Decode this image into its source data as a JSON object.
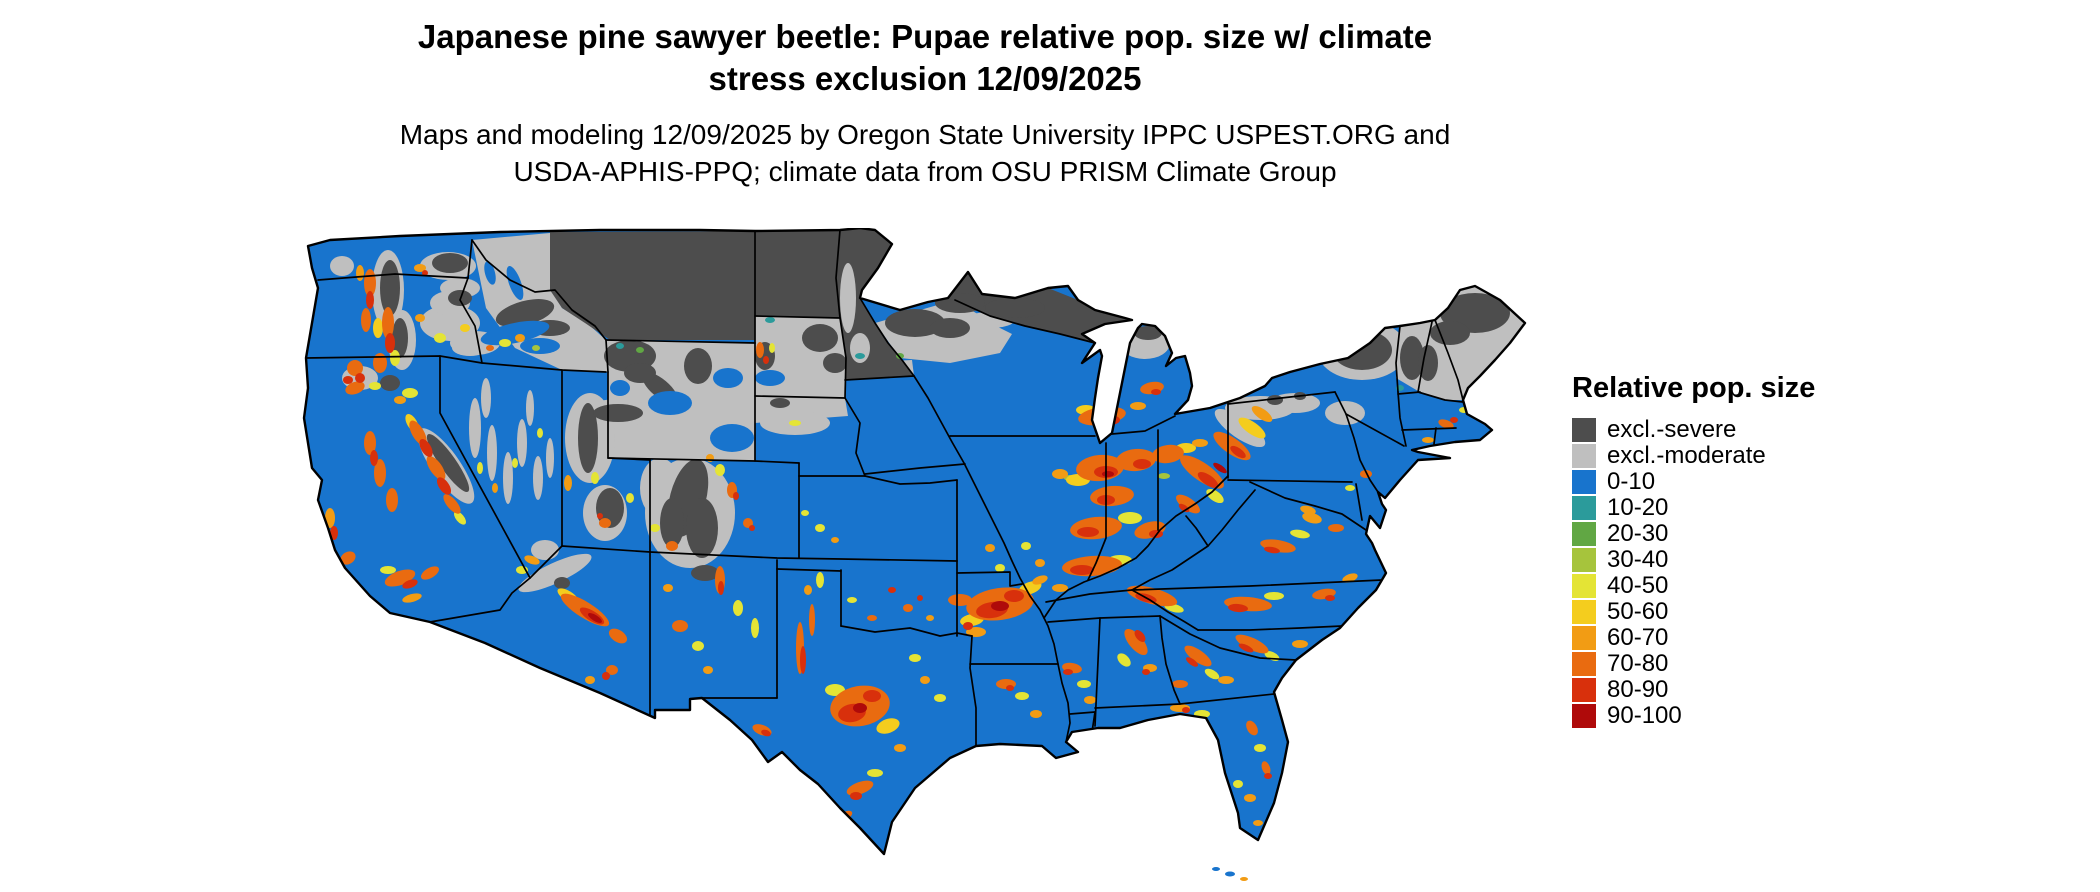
{
  "header": {
    "title_line1": "Japanese pine sawyer beetle: Pupae relative pop. size w/ climate",
    "title_line2": "stress exclusion 12/09/2025",
    "subtitle_line1": "Maps and modeling 12/09/2025 by Oregon State University IPPC USPEST.ORG and",
    "subtitle_line2": "USDA-APHIS-PPQ; climate data from OSU PRISM Climate Group"
  },
  "legend": {
    "title": "Relative pop. size",
    "entries": [
      {
        "key": "sev",
        "label": "excl.-severe",
        "color": "#4D4D4D"
      },
      {
        "key": "mod",
        "label": "excl.-moderate",
        "color": "#BFBFBF"
      },
      {
        "key": "b0",
        "label": "0-10",
        "color": "#1874CD"
      },
      {
        "key": "b10",
        "label": "10-20",
        "color": "#2B9B9B"
      },
      {
        "key": "b20",
        "label": "20-30",
        "color": "#61A744"
      },
      {
        "key": "b30",
        "label": "30-40",
        "color": "#A6C43C"
      },
      {
        "key": "b40",
        "label": "40-50",
        "color": "#E4E435"
      },
      {
        "key": "b50",
        "label": "50-60",
        "color": "#F4CD1E"
      },
      {
        "key": "b60",
        "label": "60-70",
        "color": "#F29C14"
      },
      {
        "key": "b70",
        "label": "70-80",
        "color": "#E96B10"
      },
      {
        "key": "b80",
        "label": "80-90",
        "color": "#D8300C"
      },
      {
        "key": "b90",
        "label": "90-100",
        "color": "#AF0A0A"
      }
    ]
  }
}
